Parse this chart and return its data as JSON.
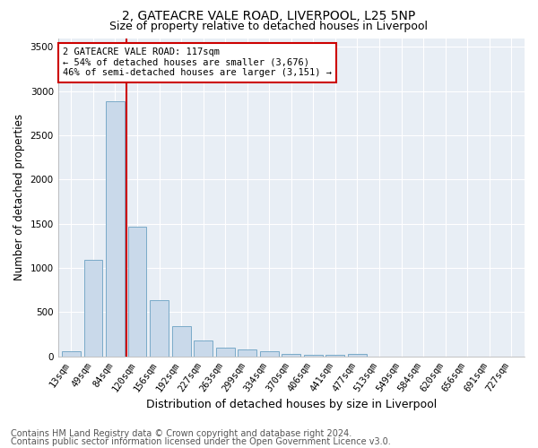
{
  "title1": "2, GATEACRE VALE ROAD, LIVERPOOL, L25 5NP",
  "title2": "Size of property relative to detached houses in Liverpool",
  "xlabel": "Distribution of detached houses by size in Liverpool",
  "ylabel": "Number of detached properties",
  "categories": [
    "13sqm",
    "49sqm",
    "84sqm",
    "120sqm",
    "156sqm",
    "192sqm",
    "227sqm",
    "263sqm",
    "299sqm",
    "334sqm",
    "370sqm",
    "406sqm",
    "441sqm",
    "477sqm",
    "513sqm",
    "549sqm",
    "584sqm",
    "620sqm",
    "656sqm",
    "691sqm",
    "727sqm"
  ],
  "values": [
    55,
    1090,
    2890,
    1470,
    630,
    340,
    175,
    100,
    80,
    55,
    30,
    20,
    20,
    25,
    0,
    0,
    0,
    0,
    0,
    0,
    0
  ],
  "bar_color": "#c9d9ea",
  "bar_edge_color": "#7aaac8",
  "vline_color": "#cc0000",
  "annotation_text": "2 GATEACRE VALE ROAD: 117sqm\n← 54% of detached houses are smaller (3,676)\n46% of semi-detached houses are larger (3,151) →",
  "annotation_box_color": "white",
  "annotation_box_edge": "#cc0000",
  "ylim": [
    0,
    3600
  ],
  "yticks": [
    0,
    500,
    1000,
    1500,
    2000,
    2500,
    3000,
    3500
  ],
  "footer1": "Contains HM Land Registry data © Crown copyright and database right 2024.",
  "footer2": "Contains public sector information licensed under the Open Government Licence v3.0.",
  "bg_color": "#ffffff",
  "plot_bg_color": "#e8eef5",
  "grid_color": "#ffffff",
  "title1_fontsize": 10,
  "title2_fontsize": 9,
  "xlabel_fontsize": 9,
  "ylabel_fontsize": 8.5,
  "tick_fontsize": 7.5,
  "footer_fontsize": 7,
  "annotation_fontsize": 7.5
}
